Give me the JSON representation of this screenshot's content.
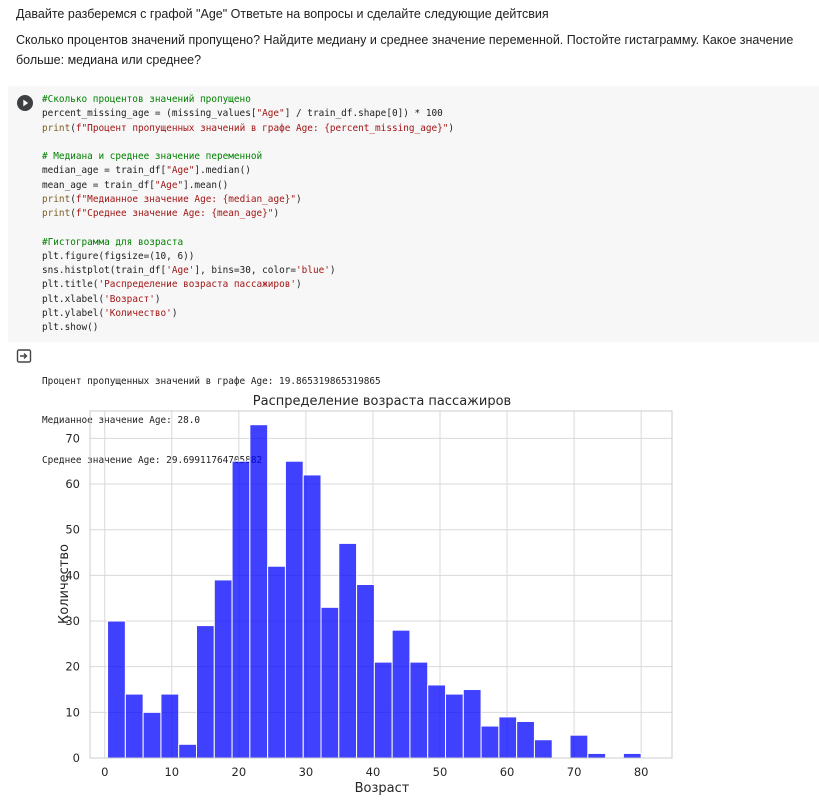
{
  "markdown": {
    "line1": "Давайте разберемся с графой \"Age\" Ответьте на вопросы и сделайте следующие дейтсвия",
    "line2": "Сколько процентов значений пропущено? Найдите медиану и среднее значение переменной. Постойте гистаграмму. Какое значение больше: медиана или среднее?"
  },
  "code_cell": {
    "run_icon": "play-circle-icon",
    "lines": [
      "#Сколько процентов значений пропущено",
      "percent_missing_age = (missing_values[\"Age\"] / train_df.shape[0]) * 100",
      "print(f\"Процент пропущенных значений в графе Age: {percent_missing_age}\")",
      "",
      "# Медиана и среднее значение переменной",
      "median_age = train_df[\"Age\"].median()",
      "mean_age = train_df[\"Age\"].mean()",
      "print(f\"Медианное значение Age: {median_age}\")",
      "print(f\"Среднее значение Age: {mean_age}\")",
      "",
      "#Гистограмма для возраста",
      "plt.figure(figsize=(10, 6))",
      "sns.histplot(train_df['Age'], bins=30, color='blue')",
      "plt.title('Распределение возраста пассажиров')",
      "plt.xlabel('Возраст')",
      "plt.ylabel('Количество')",
      "plt.show()"
    ]
  },
  "output": {
    "icon": "output-arrow-icon",
    "stdout": [
      "Процент пропущенных значений в графе Age: 19.865319865319865",
      "Медианное значение Age: 28.0",
      "Среднее значение Age: 29.69911764705882"
    ]
  },
  "chart_data": {
    "type": "bar",
    "title": "Распределение возраста пассажиров",
    "xlabel": "Возраст",
    "ylabel": "Количество",
    "bar_color": "#0000ff",
    "x_ticks": [
      0,
      10,
      20,
      30,
      40,
      50,
      60,
      70,
      80
    ],
    "y_ticks": [
      0,
      10,
      20,
      30,
      40,
      50,
      60,
      70
    ],
    "xlim": [
      -2.2,
      84.6
    ],
    "ylim": [
      0,
      76
    ],
    "grid": true,
    "bin_start": 0.42,
    "bin_width": 2.6527,
    "values": [
      30,
      14,
      10,
      14,
      3,
      29,
      39,
      65,
      73,
      42,
      65,
      62,
      33,
      47,
      38,
      21,
      28,
      21,
      16,
      14,
      15,
      7,
      9,
      8,
      4,
      0,
      5,
      1,
      0,
      1
    ]
  }
}
